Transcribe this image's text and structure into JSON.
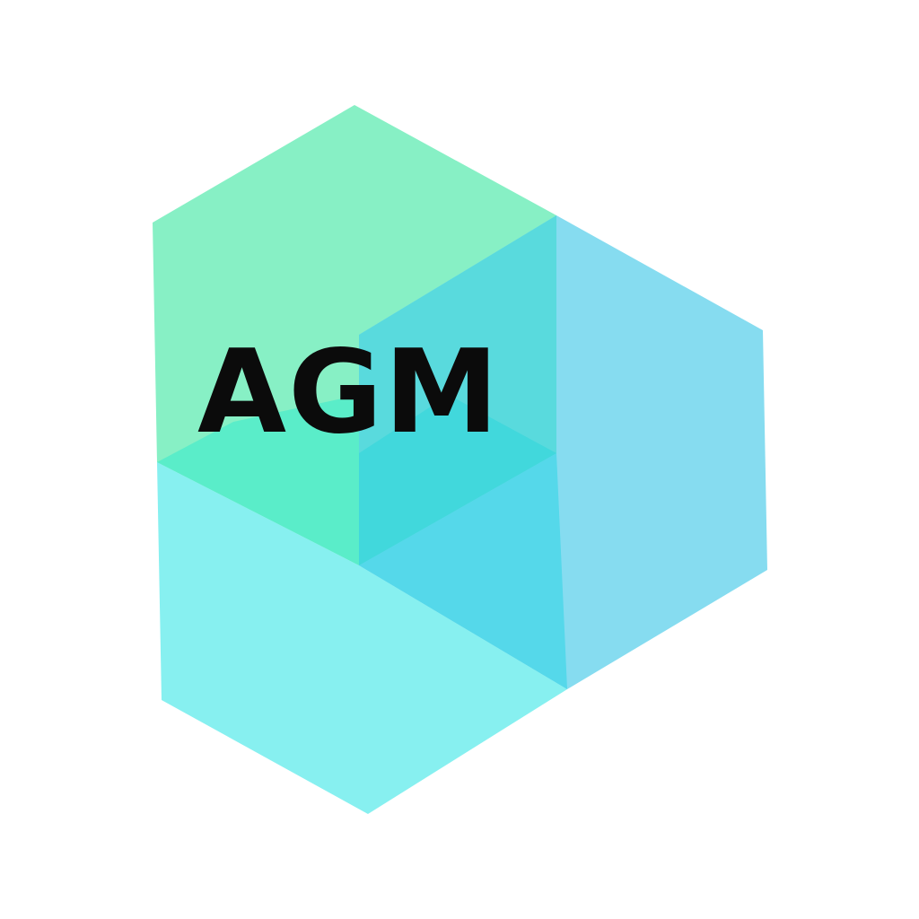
{
  "logo": {
    "text": "AGM",
    "colors": {
      "background": "#ffffff",
      "green_hexagon": "#87F0C5",
      "blue_hexagon": "#86DCF0",
      "cyan_hexagon": "#87F0F0",
      "green_blue_overlap": "#59DADD",
      "green_cyan_overlap": "#5AEDC9",
      "blue_cyan_overlap": "#55D8EA",
      "triple_overlap": "#41D8DC",
      "text": "#0b0b0b"
    }
  }
}
